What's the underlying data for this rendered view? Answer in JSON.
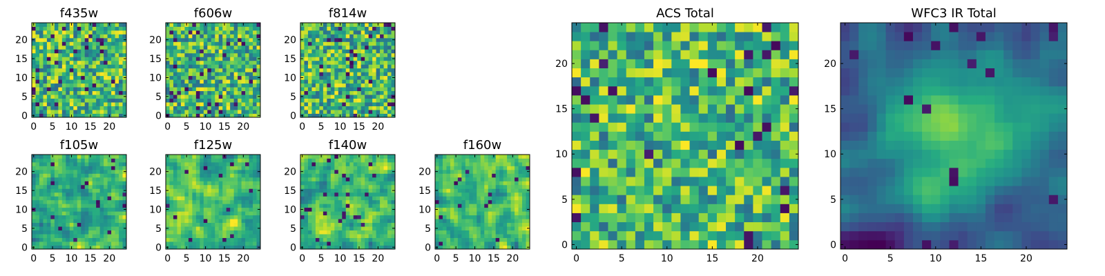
{
  "chart_data": [
    {
      "type": "heatmap",
      "title": "f435w",
      "size": 25,
      "xlim": [
        -0.5,
        24.5
      ],
      "ylim": [
        -0.5,
        24.5
      ],
      "xticks": [
        0,
        5,
        10,
        15,
        20
      ],
      "yticks": [
        0,
        5,
        10,
        15,
        20
      ],
      "colormap": "viridis",
      "texture": "noise",
      "seed": 11,
      "dark_fraction": 0.06
    },
    {
      "type": "heatmap",
      "title": "f606w",
      "size": 25,
      "xlim": [
        -0.5,
        24.5
      ],
      "ylim": [
        -0.5,
        24.5
      ],
      "xticks": [
        0,
        5,
        10,
        15,
        20
      ],
      "yticks": [
        0,
        5,
        10,
        15,
        20
      ],
      "colormap": "viridis",
      "texture": "noise",
      "seed": 23,
      "dark_fraction": 0.05
    },
    {
      "type": "heatmap",
      "title": "f814w",
      "size": 25,
      "xlim": [
        -0.5,
        24.5
      ],
      "ylim": [
        -0.5,
        24.5
      ],
      "xticks": [
        0,
        5,
        10,
        15,
        20
      ],
      "yticks": [
        0,
        5,
        10,
        15,
        20
      ],
      "colormap": "viridis",
      "texture": "noise",
      "seed": 37,
      "dark_fraction": 0.05
    },
    {
      "type": "heatmap",
      "title": "f105w",
      "size": 25,
      "xlim": [
        -0.5,
        24.5
      ],
      "ylim": [
        -0.5,
        24.5
      ],
      "xticks": [
        0,
        5,
        10,
        15,
        20
      ],
      "yticks": [
        0,
        5,
        10,
        15,
        20
      ],
      "colormap": "viridis",
      "texture": "smooth",
      "seed": 41,
      "dark_fraction": 0.02
    },
    {
      "type": "heatmap",
      "title": "f125w",
      "size": 25,
      "xlim": [
        -0.5,
        24.5
      ],
      "ylim": [
        -0.5,
        24.5
      ],
      "xticks": [
        0,
        5,
        10,
        15,
        20
      ],
      "yticks": [
        0,
        5,
        10,
        15,
        20
      ],
      "colormap": "viridis",
      "texture": "smooth",
      "seed": 53,
      "dark_fraction": 0.03
    },
    {
      "type": "heatmap",
      "title": "f140w",
      "size": 25,
      "xlim": [
        -0.5,
        24.5
      ],
      "ylim": [
        -0.5,
        24.5
      ],
      "xticks": [
        0,
        5,
        10,
        15,
        20
      ],
      "yticks": [
        0,
        5,
        10,
        15,
        20
      ],
      "colormap": "viridis",
      "texture": "smooth",
      "seed": 67,
      "dark_fraction": 0.03
    },
    {
      "type": "heatmap",
      "title": "f160w",
      "size": 25,
      "xlim": [
        -0.5,
        24.5
      ],
      "ylim": [
        -0.5,
        24.5
      ],
      "xticks": [
        0,
        5,
        10,
        15,
        20
      ],
      "yticks": [
        0,
        5,
        10,
        15,
        20
      ],
      "colormap": "viridis",
      "texture": "smooth",
      "seed": 79,
      "dark_fraction": 0.03
    },
    {
      "type": "heatmap",
      "title": "ACS Total",
      "size": 25,
      "xlim": [
        -0.5,
        24.5
      ],
      "ylim": [
        -0.5,
        24.5
      ],
      "xticks": [
        0,
        5,
        10,
        15,
        20
      ],
      "yticks": [
        0,
        5,
        10,
        15,
        20
      ],
      "colormap": "viridis",
      "texture": "noise",
      "seed": 89,
      "dark_fraction": 0.04
    },
    {
      "type": "heatmap",
      "title": "WFC3 IR Total",
      "size": 25,
      "xlim": [
        -0.5,
        24.5
      ],
      "ylim": [
        -0.5,
        24.5
      ],
      "xticks": [
        0,
        5,
        10,
        15,
        20
      ],
      "yticks": [
        0,
        5,
        10,
        15,
        20
      ],
      "colormap": "viridis",
      "texture": "smooth-centered",
      "seed": 97,
      "dark_fraction": 0.03
    }
  ]
}
